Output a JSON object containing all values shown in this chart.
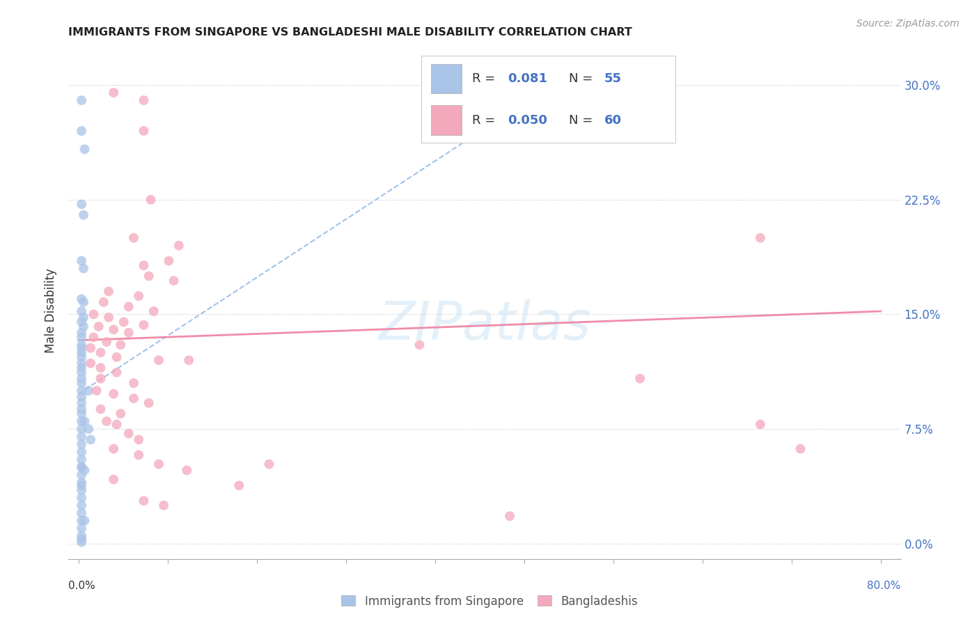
{
  "title": "IMMIGRANTS FROM SINGAPORE VS BANGLADESHI MALE DISABILITY CORRELATION CHART",
  "source": "Source: ZipAtlas.com",
  "ylabel": "Male Disability",
  "ytick_labels": [
    "0.0%",
    "7.5%",
    "15.0%",
    "22.5%",
    "30.0%"
  ],
  "ytick_values": [
    0.0,
    0.075,
    0.15,
    0.225,
    0.3
  ],
  "xtick_labels": [
    "0.0%",
    "",
    "",
    "",
    "",
    "",
    "",
    "",
    "",
    "80.0%"
  ],
  "xlim": [
    -0.01,
    0.82
  ],
  "ylim": [
    -0.01,
    0.315
  ],
  "blue_color": "#aac4e8",
  "pink_color": "#f4a8bc",
  "blue_line_color": "#90b8e8",
  "pink_line_color": "#f080a0",
  "watermark": "ZIPatlas",
  "sg_line": [
    0.0,
    0.098,
    0.46,
    0.295
  ],
  "bd_line": [
    0.0,
    0.133,
    0.8,
    0.152
  ],
  "singapore_points": [
    [
      0.003,
      0.27
    ],
    [
      0.006,
      0.258
    ],
    [
      0.003,
      0.222
    ],
    [
      0.005,
      0.215
    ],
    [
      0.003,
      0.185
    ],
    [
      0.005,
      0.18
    ],
    [
      0.003,
      0.16
    ],
    [
      0.005,
      0.158
    ],
    [
      0.003,
      0.152
    ],
    [
      0.005,
      0.148
    ],
    [
      0.003,
      0.145
    ],
    [
      0.005,
      0.142
    ],
    [
      0.003,
      0.138
    ],
    [
      0.003,
      0.135
    ],
    [
      0.003,
      0.13
    ],
    [
      0.003,
      0.128
    ],
    [
      0.003,
      0.125
    ],
    [
      0.003,
      0.122
    ],
    [
      0.003,
      0.118
    ],
    [
      0.003,
      0.115
    ],
    [
      0.003,
      0.112
    ],
    [
      0.003,
      0.108
    ],
    [
      0.003,
      0.105
    ],
    [
      0.003,
      0.1
    ],
    [
      0.003,
      0.096
    ],
    [
      0.003,
      0.092
    ],
    [
      0.003,
      0.088
    ],
    [
      0.003,
      0.085
    ],
    [
      0.003,
      0.08
    ],
    [
      0.003,
      0.075
    ],
    [
      0.003,
      0.07
    ],
    [
      0.003,
      0.065
    ],
    [
      0.003,
      0.06
    ],
    [
      0.003,
      0.055
    ],
    [
      0.003,
      0.05
    ],
    [
      0.003,
      0.045
    ],
    [
      0.003,
      0.04
    ],
    [
      0.003,
      0.035
    ],
    [
      0.003,
      0.03
    ],
    [
      0.003,
      0.025
    ],
    [
      0.003,
      0.02
    ],
    [
      0.003,
      0.015
    ],
    [
      0.003,
      0.01
    ],
    [
      0.003,
      0.005
    ],
    [
      0.003,
      0.003
    ],
    [
      0.003,
      0.001
    ],
    [
      0.01,
      0.1
    ],
    [
      0.01,
      0.075
    ],
    [
      0.003,
      0.29
    ],
    [
      0.003,
      0.05
    ],
    [
      0.003,
      0.038
    ],
    [
      0.012,
      0.068
    ],
    [
      0.006,
      0.08
    ],
    [
      0.006,
      0.048
    ],
    [
      0.006,
      0.015
    ]
  ],
  "bangladeshi_points": [
    [
      0.035,
      0.295
    ],
    [
      0.065,
      0.27
    ],
    [
      0.072,
      0.225
    ],
    [
      0.055,
      0.2
    ],
    [
      0.1,
      0.195
    ],
    [
      0.09,
      0.185
    ],
    [
      0.065,
      0.182
    ],
    [
      0.07,
      0.175
    ],
    [
      0.095,
      0.172
    ],
    [
      0.03,
      0.165
    ],
    [
      0.06,
      0.162
    ],
    [
      0.025,
      0.158
    ],
    [
      0.05,
      0.155
    ],
    [
      0.075,
      0.152
    ],
    [
      0.015,
      0.15
    ],
    [
      0.03,
      0.148
    ],
    [
      0.045,
      0.145
    ],
    [
      0.065,
      0.143
    ],
    [
      0.02,
      0.142
    ],
    [
      0.035,
      0.14
    ],
    [
      0.05,
      0.138
    ],
    [
      0.015,
      0.135
    ],
    [
      0.028,
      0.132
    ],
    [
      0.042,
      0.13
    ],
    [
      0.012,
      0.128
    ],
    [
      0.022,
      0.125
    ],
    [
      0.038,
      0.122
    ],
    [
      0.08,
      0.12
    ],
    [
      0.012,
      0.118
    ],
    [
      0.022,
      0.115
    ],
    [
      0.038,
      0.112
    ],
    [
      0.022,
      0.108
    ],
    [
      0.055,
      0.105
    ],
    [
      0.018,
      0.1
    ],
    [
      0.035,
      0.098
    ],
    [
      0.055,
      0.095
    ],
    [
      0.07,
      0.092
    ],
    [
      0.022,
      0.088
    ],
    [
      0.042,
      0.085
    ],
    [
      0.028,
      0.08
    ],
    [
      0.038,
      0.078
    ],
    [
      0.05,
      0.072
    ],
    [
      0.06,
      0.068
    ],
    [
      0.035,
      0.062
    ],
    [
      0.06,
      0.058
    ],
    [
      0.08,
      0.052
    ],
    [
      0.108,
      0.048
    ],
    [
      0.035,
      0.042
    ],
    [
      0.16,
      0.038
    ],
    [
      0.065,
      0.028
    ],
    [
      0.085,
      0.025
    ],
    [
      0.065,
      0.29
    ],
    [
      0.43,
      0.018
    ],
    [
      0.56,
      0.108
    ],
    [
      0.68,
      0.2
    ],
    [
      0.72,
      0.062
    ],
    [
      0.19,
      0.052
    ],
    [
      0.34,
      0.13
    ],
    [
      0.11,
      0.12
    ],
    [
      0.68,
      0.078
    ]
  ]
}
